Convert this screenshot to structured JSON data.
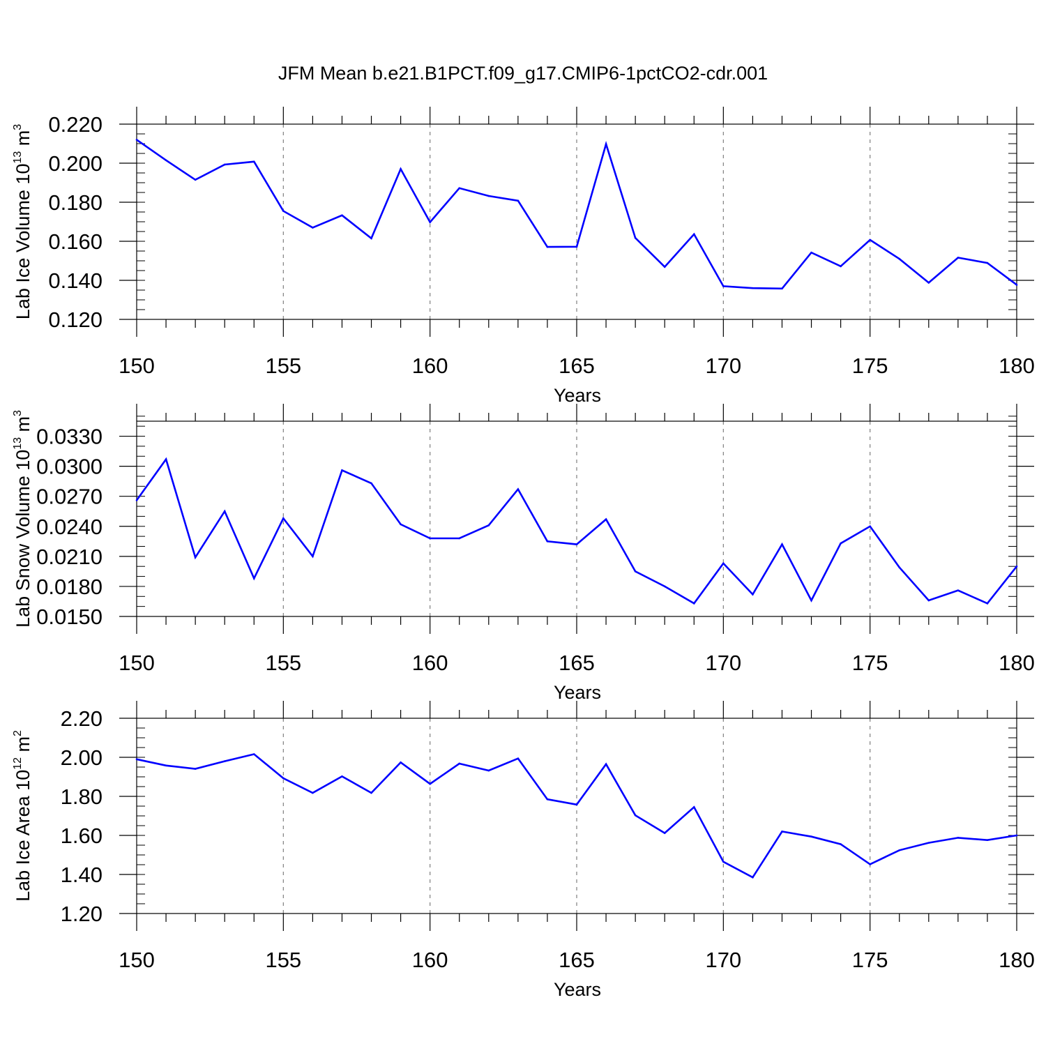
{
  "title": "JFM Mean b.e21.B1PCT.f09_g17.CMIP6-1pctCO2-cdr.001",
  "style": {
    "line_color": "#0000ff",
    "axis_color": "#000000",
    "grid_color": "#7f7f7f"
  },
  "chart_data": [
    {
      "type": "line",
      "xlabel": "Years",
      "ylabel": {
        "text": "Lab Ice Volume 10",
        "exponent": "13",
        "unit": " m",
        "unit_exponent": "3"
      },
      "xlim": [
        150,
        180
      ],
      "ylim": [
        0.12,
        0.22
      ],
      "xticks": [
        150,
        155,
        160,
        165,
        170,
        175,
        180
      ],
      "xtick_labels": [
        "150",
        "155",
        "160",
        "165",
        "170",
        "175",
        "180"
      ],
      "yticks": [
        0.12,
        0.14,
        0.16,
        0.18,
        0.2,
        0.22
      ],
      "ytick_labels": [
        "0.120",
        "0.140",
        "0.160",
        "0.180",
        "0.200",
        "0.220"
      ],
      "y_minor_step": 0.005,
      "grid": "dashed vertical lines at major x ticks",
      "x": [
        150,
        151,
        152,
        153,
        154,
        155,
        156,
        157,
        158,
        159,
        160,
        161,
        162,
        163,
        164,
        165,
        166,
        167,
        168,
        169,
        170,
        171,
        172,
        173,
        174,
        175,
        176,
        177,
        178,
        179,
        180
      ],
      "values": [
        0.212,
        0.2015,
        0.1915,
        0.1993,
        0.2008,
        0.1755,
        0.167,
        0.1733,
        0.1615,
        0.197,
        0.1698,
        0.1872,
        0.1832,
        0.1808,
        0.1571,
        0.1572,
        0.2098,
        0.1617,
        0.1469,
        0.1636,
        0.137,
        0.136,
        0.1358,
        0.1542,
        0.1472,
        0.1607,
        0.151,
        0.1388,
        0.1516,
        0.1489,
        0.1377
      ]
    },
    {
      "type": "line",
      "xlabel": "Years",
      "ylabel": {
        "text": "Lab Snow Volume 10",
        "exponent": "13",
        "unit": " m",
        "unit_exponent": "3"
      },
      "xlim": [
        150,
        180
      ],
      "ylim": [
        0.015,
        0.0345
      ],
      "xticks": [
        150,
        155,
        160,
        165,
        170,
        175,
        180
      ],
      "xtick_labels": [
        "150",
        "155",
        "160",
        "165",
        "170",
        "175",
        "180"
      ],
      "yticks": [
        0.015,
        0.018,
        0.021,
        0.024,
        0.027,
        0.03,
        0.033
      ],
      "ytick_labels": [
        "0.0150",
        "0.0180",
        "0.0210",
        "0.0240",
        "0.0270",
        "0.0300",
        "0.0330"
      ],
      "y_minor_step": 0.001,
      "grid": "dashed vertical lines at major x ticks",
      "x": [
        150,
        151,
        152,
        153,
        154,
        155,
        156,
        157,
        158,
        159,
        160,
        161,
        162,
        163,
        164,
        165,
        166,
        167,
        168,
        169,
        170,
        171,
        172,
        173,
        174,
        175,
        176,
        177,
        178,
        179,
        180
      ],
      "values": [
        0.0266,
        0.0307,
        0.0209,
        0.0255,
        0.0188,
        0.0248,
        0.021,
        0.0296,
        0.0283,
        0.0242,
        0.0228,
        0.0228,
        0.0241,
        0.0277,
        0.0225,
        0.0222,
        0.0247,
        0.0195,
        0.018,
        0.0163,
        0.0203,
        0.0172,
        0.0222,
        0.0166,
        0.0223,
        0.024,
        0.0199,
        0.0166,
        0.0176,
        0.0163,
        0.02
      ]
    },
    {
      "type": "line",
      "xlabel": "Years",
      "ylabel": {
        "text": "Lab Ice Area 10",
        "exponent": "12",
        "unit": " m",
        "unit_exponent": "2"
      },
      "xlim": [
        150,
        180
      ],
      "ylim": [
        1.2,
        2.2
      ],
      "xticks": [
        150,
        155,
        160,
        165,
        170,
        175,
        180
      ],
      "xtick_labels": [
        "150",
        "155",
        "160",
        "165",
        "170",
        "175",
        "180"
      ],
      "yticks": [
        1.2,
        1.4,
        1.6,
        1.8,
        2.0,
        2.2
      ],
      "ytick_labels": [
        "1.20",
        "1.40",
        "1.60",
        "1.80",
        "2.00",
        "2.20"
      ],
      "y_minor_step": 0.05,
      "grid": "dashed vertical lines at major x ticks",
      "x": [
        150,
        151,
        152,
        153,
        154,
        155,
        156,
        157,
        158,
        159,
        160,
        161,
        162,
        163,
        164,
        165,
        166,
        167,
        168,
        169,
        170,
        171,
        172,
        173,
        174,
        175,
        176,
        177,
        178,
        179,
        180
      ],
      "values": [
        1.99,
        1.958,
        1.941,
        1.98,
        2.016,
        1.893,
        1.818,
        1.902,
        1.818,
        1.974,
        1.864,
        1.968,
        1.932,
        1.994,
        1.785,
        1.758,
        1.965,
        1.703,
        1.612,
        1.745,
        1.465,
        1.385,
        1.62,
        1.594,
        1.555,
        1.452,
        1.524,
        1.562,
        1.588,
        1.576,
        1.6
      ]
    }
  ]
}
